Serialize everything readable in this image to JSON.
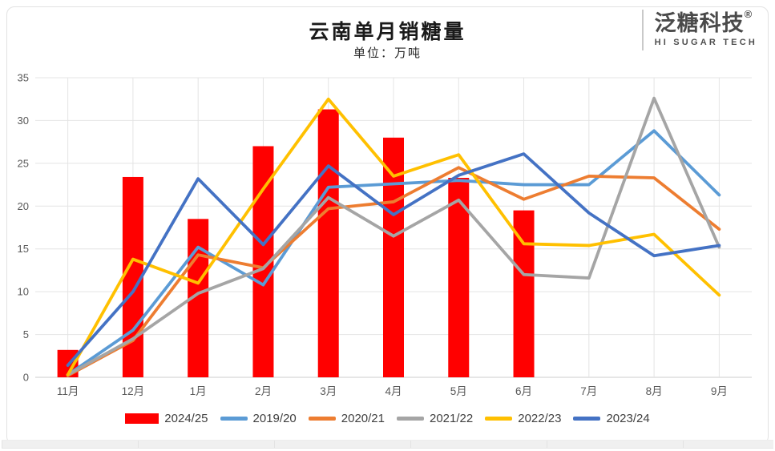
{
  "page": {
    "title": "云南单月销糖量",
    "subtitle": "单位：万吨"
  },
  "logo": {
    "name": "泛糖科技",
    "registered": "®",
    "tagline": "HI SUGAR TECH"
  },
  "colors": {
    "bar_red": "#FF0000",
    "line_2019_20": "#5B9BD5",
    "line_2020_21": "#ED7D31",
    "line_2021_22": "#A5A5A5",
    "line_2022_23": "#FFC000",
    "line_2023_24": "#4472C4",
    "gridline": "#e4e4e4",
    "axis_text": "#595959"
  },
  "chart_data": {
    "type": "combo",
    "title": "云南单月销糖量",
    "subtitle": "单位：万吨",
    "categories": [
      "11月",
      "12月",
      "1月",
      "2月",
      "3月",
      "4月",
      "5月",
      "6月",
      "7月",
      "8月",
      "9月"
    ],
    "series": [
      {
        "name": "2024/25",
        "type": "bar",
        "color": "#FF0000",
        "values": [
          3.2,
          23.4,
          18.5,
          27.0,
          31.3,
          28.0,
          23.3,
          19.5,
          null,
          null,
          null
        ]
      },
      {
        "name": "2019/20",
        "type": "line",
        "color": "#5B9BD5",
        "values": [
          0.3,
          5.5,
          15.2,
          10.8,
          22.2,
          22.6,
          23.0,
          22.5,
          22.5,
          28.8,
          21.3
        ]
      },
      {
        "name": "2020/21",
        "type": "line",
        "color": "#ED7D31",
        "values": [
          0.2,
          4.3,
          14.3,
          12.8,
          19.7,
          20.5,
          24.5,
          20.8,
          23.5,
          23.3,
          17.3
        ]
      },
      {
        "name": "2021/22",
        "type": "line",
        "color": "#A5A5A5",
        "values": [
          0.3,
          4.5,
          9.8,
          12.7,
          21.0,
          16.5,
          20.7,
          12.0,
          11.6,
          32.6,
          15.2
        ]
      },
      {
        "name": "2022/23",
        "type": "line",
        "color": "#FFC000",
        "values": [
          0.3,
          13.8,
          11.0,
          22.0,
          32.5,
          23.5,
          26.0,
          15.6,
          15.4,
          16.7,
          9.6
        ]
      },
      {
        "name": "2023/24",
        "type": "line",
        "color": "#4472C4",
        "values": [
          1.4,
          10.0,
          23.2,
          15.5,
          24.7,
          19.0,
          23.6,
          26.1,
          19.2,
          14.2,
          15.4
        ]
      }
    ],
    "xlabel": "",
    "ylabel": "",
    "ylim": [
      0,
      35
    ],
    "ytick_step": 5,
    "grid": "horizontal-and-vertical",
    "legend_position": "bottom"
  }
}
